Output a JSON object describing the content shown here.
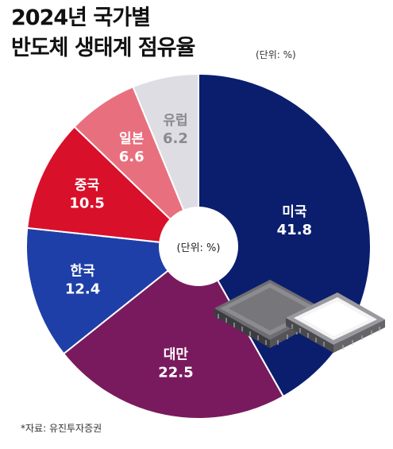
{
  "title_line1": "2024년 국가별",
  "title_line2": "반도체 생태계 점유율",
  "unit_top": "(단위: %)",
  "center_label": "(단위: %)",
  "source": "*자료: 유진투자증권",
  "chart_data": {
    "type": "pie",
    "unit": "%",
    "categories": [
      "미국",
      "대만",
      "한국",
      "중국",
      "일본",
      "유럽"
    ],
    "values": [
      41.8,
      22.5,
      12.4,
      10.5,
      6.6,
      6.2
    ],
    "value_labels": [
      "41.8",
      "22.5",
      "12.4",
      "10.5",
      "6.6",
      "6.2"
    ],
    "colors": [
      "#0b1e6e",
      "#7a1a5e",
      "#1f3fa8",
      "#d8102a",
      "#e8707e",
      "#dddde3"
    ],
    "label_colors": [
      "#ffffff",
      "#ffffff",
      "#ffffff",
      "#ffffff",
      "#ffffff",
      "#8a8a8e"
    ],
    "donut": true
  }
}
